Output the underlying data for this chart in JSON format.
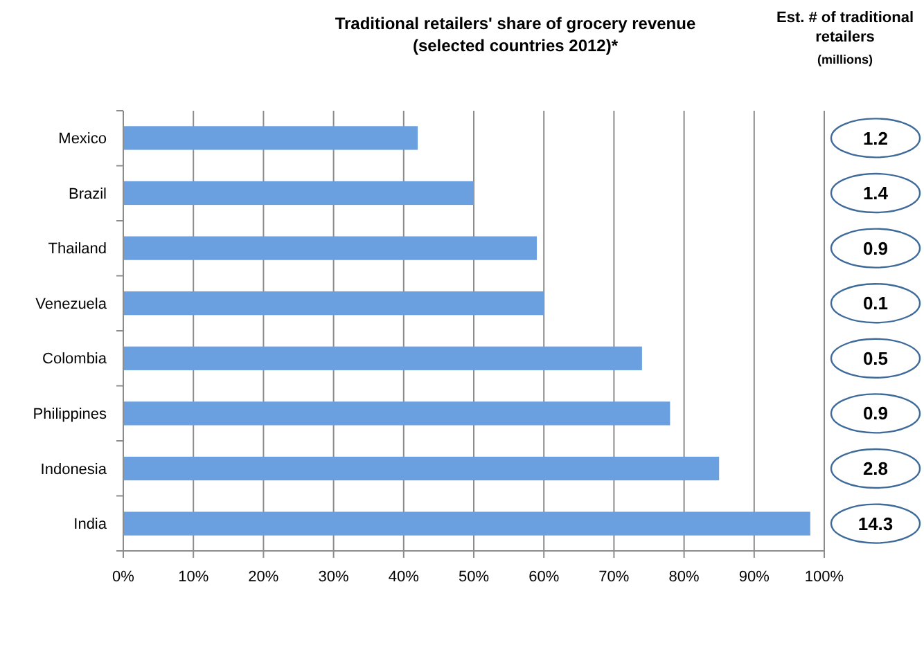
{
  "chart_data": {
    "type": "bar",
    "orientation": "horizontal",
    "title": "Traditional retailers' share of grocery revenue",
    "subtitle": "(selected countries 2012)*",
    "categories": [
      "Mexico",
      "Brazil",
      "Thailand",
      "Venezuela",
      "Colombia",
      "Philippines",
      "Indonesia",
      "India"
    ],
    "values": [
      42,
      50,
      59,
      60,
      74,
      78,
      85,
      98
    ],
    "color": "#6a9fe0",
    "xlim": [
      0,
      100
    ],
    "xticks": [
      {
        "value": 0,
        "label": "0%"
      },
      {
        "value": 10,
        "label": "10%"
      },
      {
        "value": 20,
        "label": "20%"
      },
      {
        "value": 30,
        "label": "30%"
      },
      {
        "value": 40,
        "label": "40%"
      },
      {
        "value": 50,
        "label": "50%"
      },
      {
        "value": 60,
        "label": "60%"
      },
      {
        "value": 70,
        "label": "70%"
      },
      {
        "value": 80,
        "label": "80%"
      },
      {
        "value": 90,
        "label": "90%"
      },
      {
        "value": 100,
        "label": "100%"
      }
    ],
    "grid": "x",
    "annotations": [
      "Est. # of traditional retailers",
      "(millions)",
      "1.2",
      "1.4",
      "0.9",
      "0.1",
      "0.5",
      "0.9",
      "2.8",
      "14.3"
    ]
  }
}
